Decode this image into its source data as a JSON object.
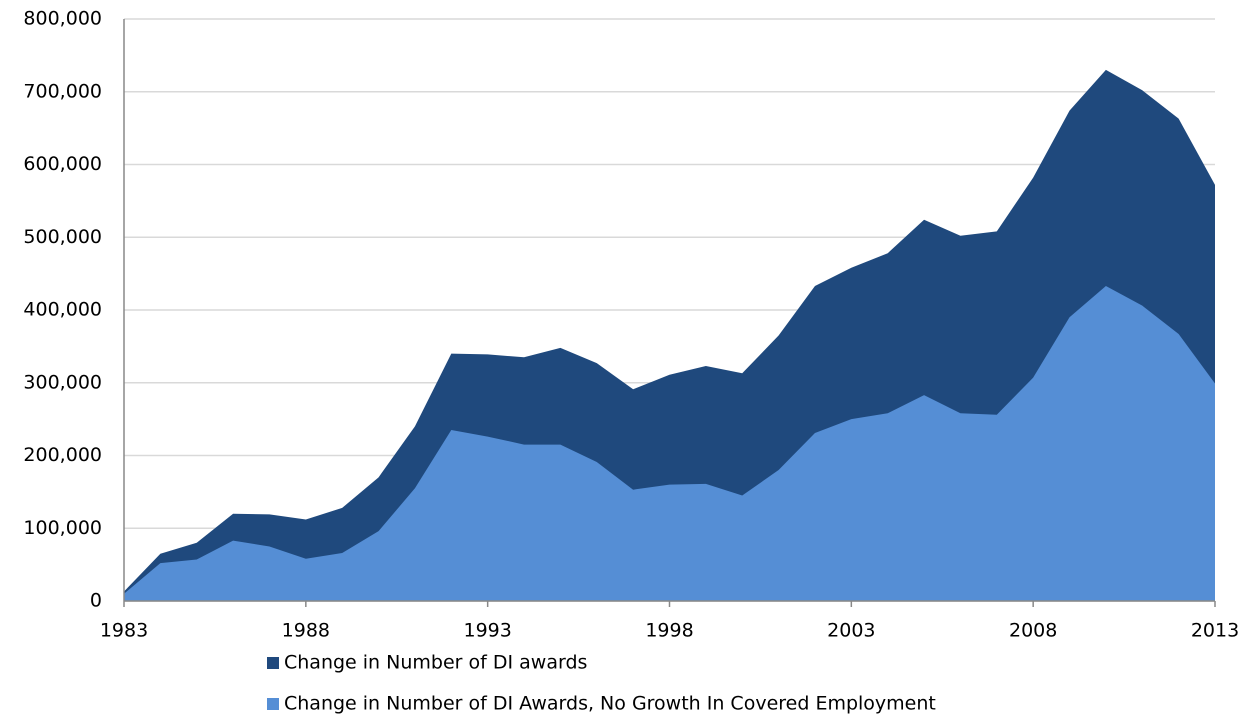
{
  "chart_data": {
    "type": "area",
    "x": [
      1983,
      1984,
      1985,
      1986,
      1987,
      1988,
      1989,
      1990,
      1991,
      1992,
      1993,
      1994,
      1995,
      1996,
      1997,
      1998,
      1999,
      2000,
      2001,
      2002,
      2003,
      2004,
      2005,
      2006,
      2007,
      2008,
      2009,
      2010,
      2011,
      2012,
      2013
    ],
    "series": [
      {
        "name": "Change in Number of DI awards",
        "color": "#1f497d",
        "values": [
          13000,
          65000,
          80000,
          120000,
          119000,
          112000,
          128000,
          170000,
          240000,
          340000,
          339000,
          335000,
          348000,
          327000,
          291000,
          311000,
          323000,
          313000,
          365000,
          433000,
          458000,
          478000,
          524000,
          502000,
          508000,
          582000,
          674000,
          730000,
          702000,
          663000,
          572000
        ]
      },
      {
        "name": "Change in Number of DI Awards, No Growth In Covered Employment",
        "color": "#558ed5",
        "values": [
          10000,
          52000,
          57000,
          83000,
          75000,
          58000,
          66000,
          96000,
          155000,
          235000,
          226000,
          215000,
          215000,
          191000,
          153000,
          160000,
          161000,
          145000,
          180000,
          231000,
          250000,
          258000,
          283000,
          258000,
          256000,
          307000,
          390000,
          433000,
          406000,
          367000,
          299000
        ]
      }
    ],
    "xlim": [
      1983,
      2013
    ],
    "xticks": [
      1983,
      1988,
      1993,
      1998,
      2003,
      2008,
      2013
    ],
    "ylim": [
      0,
      800000
    ],
    "yticks": [
      0,
      {
        "value": 100000,
        "label": "100,000"
      },
      {
        "value": 200000,
        "label": "200,000"
      },
      {
        "value": 300000,
        "label": "300,000"
      },
      {
        "value": 400000,
        "label": "400,000"
      },
      {
        "value": 500000,
        "label": "500,000"
      },
      {
        "value": 600000,
        "label": "600,000"
      },
      {
        "value": 700000,
        "label": "700,000"
      },
      {
        "value": 800000,
        "label": "800,000"
      }
    ],
    "grid": true,
    "legend": "bottom"
  }
}
